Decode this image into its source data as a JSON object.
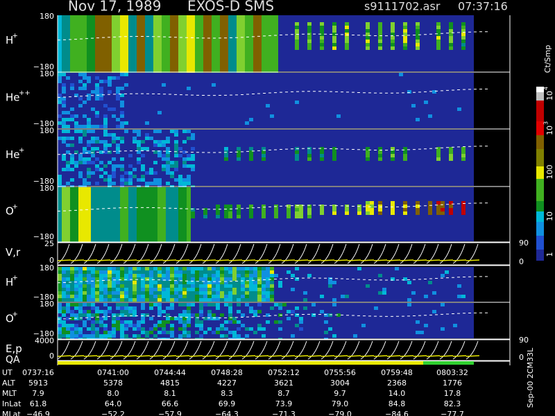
{
  "header": {
    "date": "Nov 17, 1989",
    "instrument": "EXOS-D SMS",
    "file": "s9111702.asr",
    "time": "07:37:16"
  },
  "panels": [
    {
      "ion": "H",
      "charge": "+",
      "top": "180",
      "bottom": "−180"
    },
    {
      "ion": "He",
      "charge": "++",
      "top": "180",
      "bottom": "−180"
    },
    {
      "ion": "He",
      "charge": "+",
      "top": "180",
      "bottom": "−180"
    },
    {
      "ion": "O",
      "charge": "+",
      "top": "180",
      "bottom": "−180"
    },
    {
      "ion": "V,r",
      "charge": "",
      "top": "25",
      "bottom": "0",
      "right_top": "90",
      "right_bottom": "0"
    },
    {
      "ion": "H",
      "charge": "+",
      "top": "180",
      "bottom": "−180"
    },
    {
      "ion": "O",
      "charge": "+",
      "top": "180",
      "bottom": "−180"
    },
    {
      "ion": "E,p",
      "charge": "",
      "top": "4000",
      "bottom": "0",
      "right_top": "90",
      "right_bottom": "0"
    }
  ],
  "qa": "QA",
  "colorbar": {
    "unit": "Ct/Smp",
    "labels": [
      {
        "base": "10",
        "exp": "4"
      },
      {
        "base": "10",
        "exp": "3"
      },
      {
        "base": "100",
        "exp": ""
      },
      {
        "base": "10",
        "exp": ""
      },
      {
        "base": "1",
        "exp": ""
      }
    ]
  },
  "footer": {
    "rows": [
      {
        "label": "UT",
        "values": [
          "0737:16",
          "0741:00",
          "0744:44",
          "0748:28",
          "0752:12",
          "0755:56",
          "0759:48",
          "0803:32"
        ]
      },
      {
        "label": "ALT",
        "values": [
          "5913",
          "5378",
          "4815",
          "4227",
          "3621",
          "3004",
          "2368",
          "1776"
        ]
      },
      {
        "label": "MLT",
        "values": [
          "7.9",
          "8.0",
          "8.1",
          "8.3",
          "8.7",
          "9.7",
          "14.0",
          "17.8"
        ]
      },
      {
        "label": "InLat",
        "values": [
          "61.8",
          "64.0",
          "66.6",
          "69.9",
          "73.9",
          "79.0",
          "84.8",
          "82.3"
        ]
      },
      {
        "label": "MLat",
        "values": [
          "−46.9",
          "−52.2",
          "−57.9",
          "−64.3",
          "−71.3",
          "−79.0",
          "−84.6",
          "−77.7"
        ]
      }
    ]
  },
  "side_note": "Sep-00 2CM33L"
}
